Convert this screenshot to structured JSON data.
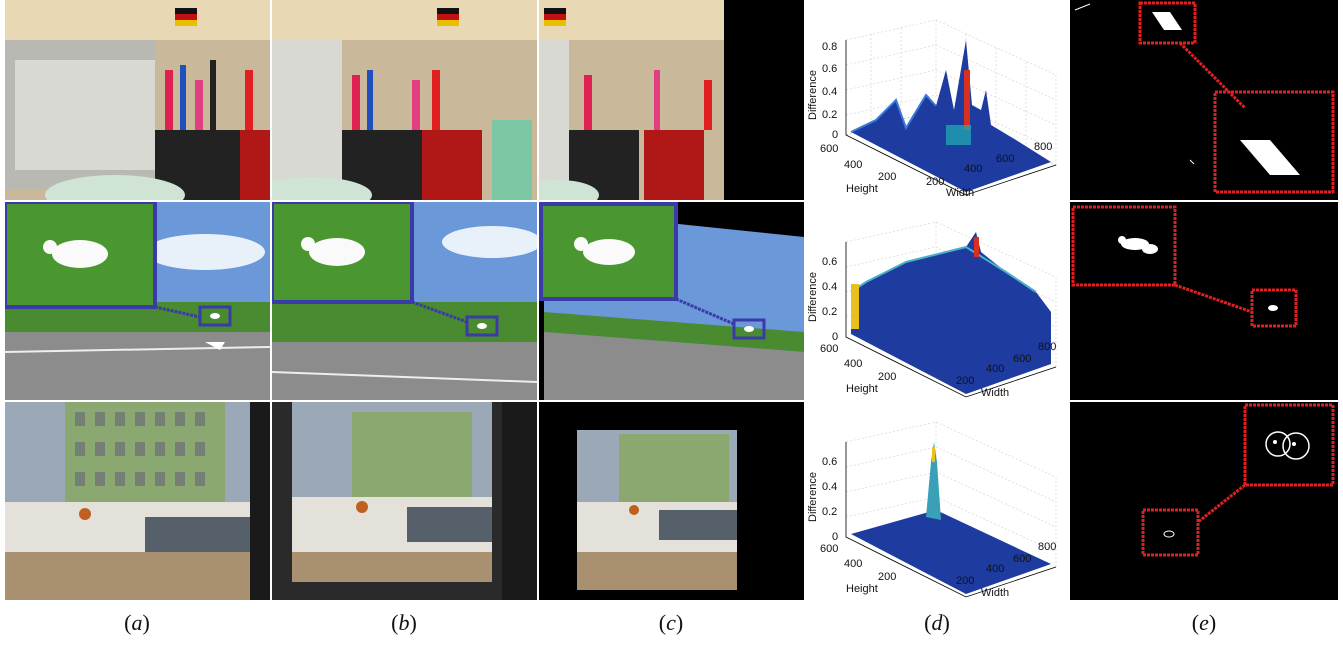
{
  "figure": {
    "captions": [
      {
        "open": "(",
        "letter": "a",
        "close": ")"
      },
      {
        "open": "(",
        "letter": "b",
        "close": ")"
      },
      {
        "open": "(",
        "letter": "c",
        "close": ")"
      },
      {
        "open": "(",
        "letter": "d",
        "close": ")"
      },
      {
        "open": "(",
        "letter": "e",
        "close": ")"
      }
    ],
    "plots": [
      {
        "zlabel": "Difference",
        "xlabel": "Width",
        "ylabel": "Height",
        "z_ticks": [
          "0",
          "0.2",
          "0.4",
          "0.6",
          "0.8"
        ],
        "width_ticks": [
          "200",
          "400",
          "600",
          "800"
        ],
        "height_ticks": [
          "200",
          "400",
          "600"
        ]
      },
      {
        "zlabel": "Difference",
        "xlabel": "Width",
        "ylabel": "Height",
        "z_ticks": [
          "0",
          "0.2",
          "0.4",
          "0.6"
        ],
        "width_ticks": [
          "200",
          "400",
          "600",
          "800"
        ],
        "height_ticks": [
          "200",
          "400",
          "600"
        ]
      },
      {
        "zlabel": "Difference",
        "xlabel": "Width",
        "ylabel": "Height",
        "z_ticks": [
          "0",
          "0.2",
          "0.4",
          "0.6"
        ],
        "width_ticks": [
          "200",
          "400",
          "600",
          "800"
        ],
        "height_ticks": [
          "200",
          "400",
          "600"
        ]
      }
    ],
    "colors": {
      "highlight_red": "#e02020",
      "zoom_blue": "#3a3aa8",
      "surface_blue": "#1e3ca0"
    }
  }
}
